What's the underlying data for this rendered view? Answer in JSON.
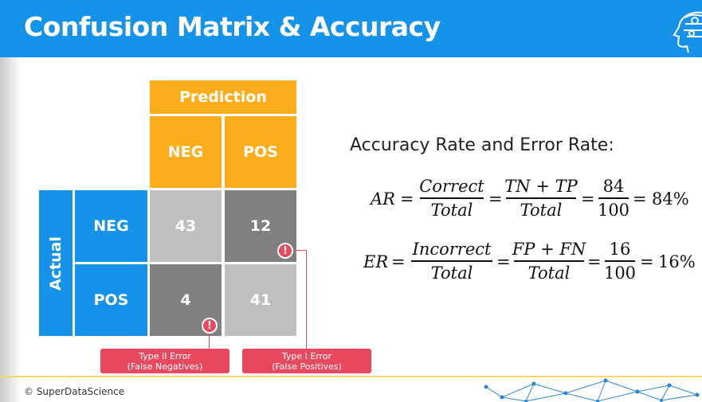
{
  "header": {
    "title": "Confusion Matrix & Accuracy",
    "logo_icon": "brain-head-logo-icon"
  },
  "matrix": {
    "prediction_label": "Prediction",
    "actual_label": "Actual",
    "col_labels": [
      "NEG",
      "POS"
    ],
    "row_labels": [
      "NEG",
      "POS"
    ],
    "cells": {
      "tn": "43",
      "fp": "12",
      "fn": "4",
      "tp": "41"
    }
  },
  "errors": {
    "type2": {
      "line1": "Type II Error",
      "line2": "(False Negatives)"
    },
    "type1": {
      "line1": "Type I Error",
      "line2": "(False Positives)"
    },
    "alert_icon": "exclamation-icon"
  },
  "formulas": {
    "heading": "Accuracy Rate and Error Rate:",
    "ar": {
      "lhs": "AR",
      "f1_num": "Correct",
      "f1_den": "Total",
      "f2_num": "TN + TP",
      "f2_den": "Total",
      "f3_num": "84",
      "f3_den": "100",
      "result": "84%"
    },
    "er": {
      "lhs": "ER",
      "f1_num": "Incorrect",
      "f1_den": "Total",
      "f2_num": "FP + FN",
      "f2_den": "Total",
      "f3_num": "16",
      "f3_den": "100",
      "result": "16%"
    }
  },
  "footer": {
    "copyright": "© SuperDataScience"
  },
  "colors": {
    "header_blue": "#1593e9",
    "orange": "#fbad1b",
    "dark_gray": "#808080",
    "light_gray": "#bfbfbf",
    "error_red": "#e8495f",
    "footer_line": "#f6d66b"
  }
}
